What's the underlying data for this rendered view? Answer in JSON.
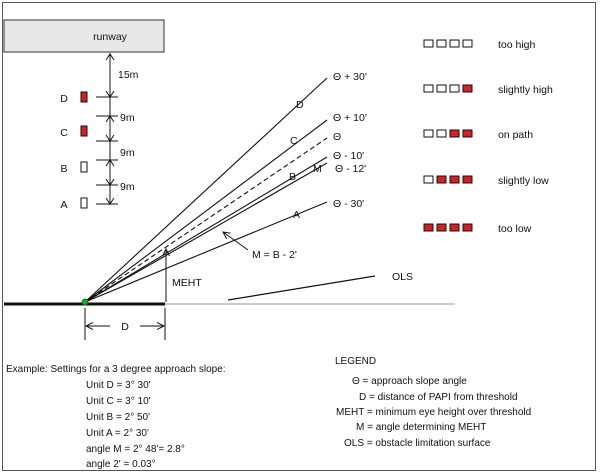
{
  "runway_label": "runway",
  "units": [
    {
      "label": "D",
      "color": "#d42020"
    },
    {
      "label": "C",
      "color": "#d42020"
    },
    {
      "label": "B",
      "color": "#ffffff"
    },
    {
      "label": "A",
      "color": "#ffffff"
    }
  ],
  "spacing": [
    "15m",
    "9m",
    "9m",
    "9m"
  ],
  "slope_labels": {
    "theta_plus_30": "Θ + 30'",
    "theta_plus_10": "Θ + 10'",
    "theta": "Θ",
    "theta_minus_10": "Θ - 10'",
    "m_label": "M",
    "theta_minus_12": "Θ - 12'",
    "theta_minus_30": "Θ - 30'"
  },
  "line_labels": {
    "d": "D",
    "c": "C",
    "b": "B",
    "a": "A"
  },
  "m_equation": "M = B - 2'",
  "meht_label": "MEHT",
  "ols_label": "OLS",
  "distance_label": "D",
  "indications": [
    {
      "label": "too high",
      "lights": [
        "white",
        "white",
        "white",
        "white"
      ]
    },
    {
      "label": "slightly high",
      "lights": [
        "white",
        "white",
        "white",
        "red"
      ]
    },
    {
      "label": "on path",
      "lights": [
        "white",
        "white",
        "red",
        "red"
      ]
    },
    {
      "label": "slightly low",
      "lights": [
        "white",
        "red",
        "red",
        "red"
      ]
    },
    {
      "label": "too low",
      "lights": [
        "red",
        "red",
        "red",
        "red"
      ]
    }
  ],
  "example": {
    "heading": "Example:  Settings for a 3 degree approach slope:",
    "lines": [
      "Unit D = 3° 30'",
      "Unit C = 3° 10'",
      "Unit B = 2° 50'",
      "Unit A = 2° 30'",
      "angle M = 2° 48'= 2.8°",
      "angle 2' = 0.03°"
    ]
  },
  "legend": {
    "title": "LEGEND",
    "items": [
      "Θ = approach slope angle",
      "D = distance of PAPI from threshold",
      "MEHT = minimum eye height over threshold",
      "M = angle determining MEHT",
      "OLS = obstacle limitation surface"
    ]
  },
  "colors": {
    "red": "#d42020",
    "white": "#ffffff",
    "green": "#1ea81e",
    "runway_fill": "#e8e8e8"
  }
}
